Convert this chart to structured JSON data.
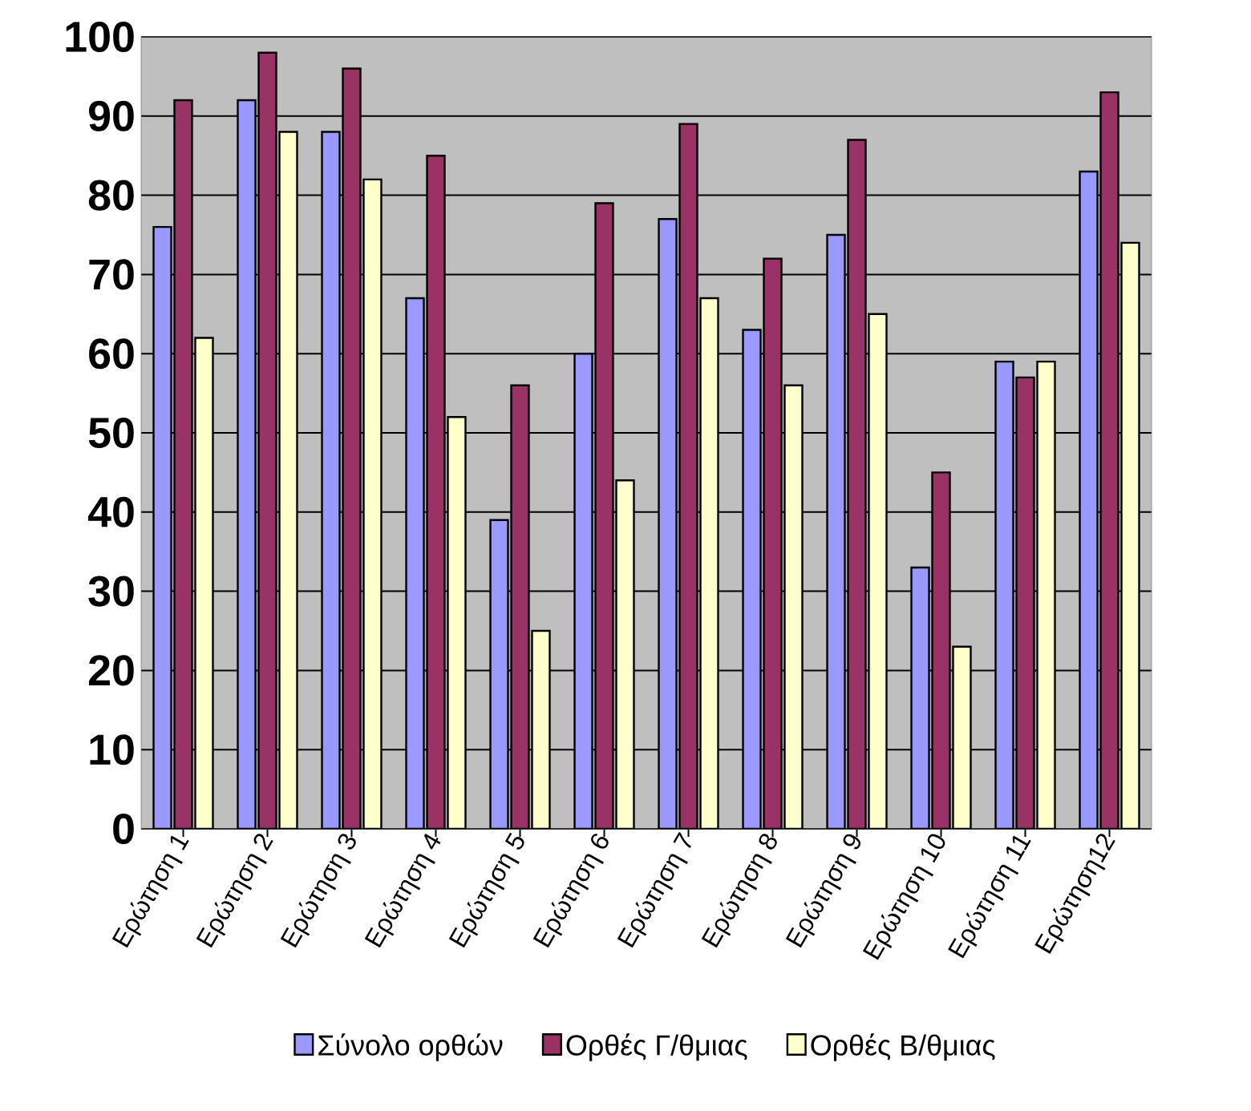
{
  "chart_data": {
    "type": "bar",
    "categories": [
      "Ερώτηση 1",
      "Ερώτηση 2",
      "Ερώτηση 3",
      "Ερώτηση 4",
      "Ερώτηση 5",
      "Ερώτηση 6",
      "Ερώτηση 7",
      "Ερώτηση 8",
      "Ερώτηση 9",
      "Ερώτηση 10",
      "Ερώτηση 11",
      "Ερώτηση12"
    ],
    "series": [
      {
        "name": "Σύνολο ορθών",
        "color": "#9999ff",
        "values": [
          76,
          92,
          88,
          67,
          39,
          60,
          77,
          63,
          75,
          33,
          59,
          83
        ]
      },
      {
        "name": "Ορθές Γ/θμιας",
        "color": "#993366",
        "values": [
          92,
          98,
          96,
          85,
          56,
          79,
          89,
          72,
          87,
          45,
          57,
          93
        ]
      },
      {
        "name": "Ορθές Β/θμιας",
        "color": "#ffffcc",
        "values": [
          62,
          88,
          82,
          52,
          25,
          44,
          67,
          56,
          65,
          23,
          59,
          74
        ]
      }
    ],
    "ylim": [
      0,
      100
    ],
    "yticks": [
      0,
      10,
      20,
      30,
      40,
      50,
      60,
      70,
      80,
      90,
      100
    ],
    "grid": "y",
    "legend": "bottom"
  }
}
